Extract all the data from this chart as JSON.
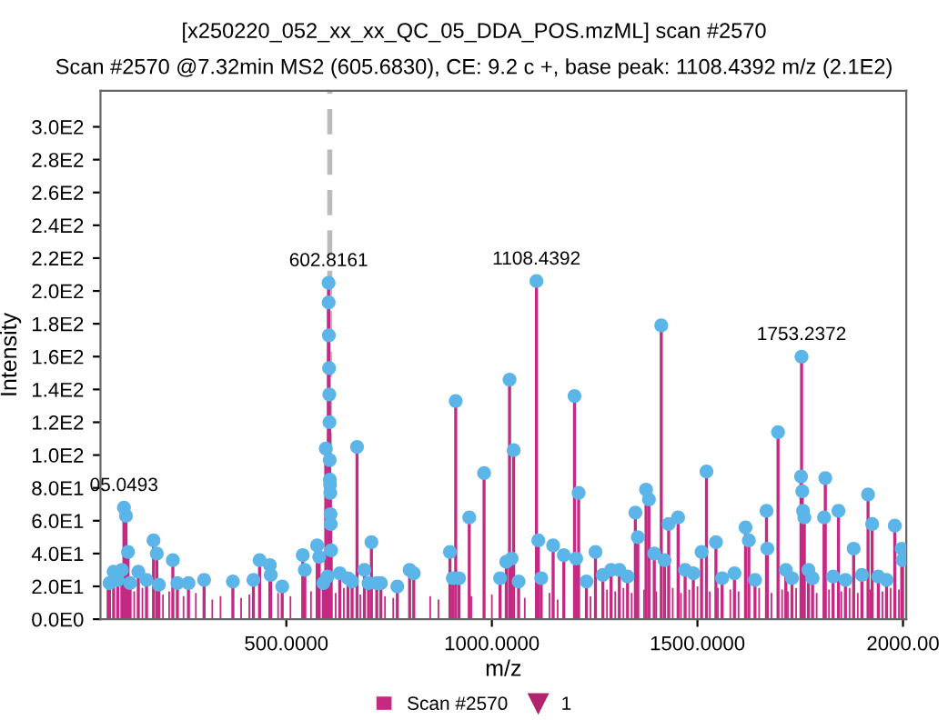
{
  "chart_data": {
    "type": "bar",
    "title": "[x250220_052_xx_xx_QC_05_DDA_POS.mzML] scan #2570",
    "subtitle": "Scan #2570 @7.32min MS2 (605.6830), CE: 9.2 c +, base peak: 1108.4392 m/z (2.1E2)",
    "xlabel": "m/z",
    "ylabel": "Intensity",
    "xlim": [
      48,
      2008
    ],
    "ylim": [
      0,
      322
    ],
    "xticks": [
      {
        "value": 500,
        "label": "500.0000"
      },
      {
        "value": 1000,
        "label": "1000.0000"
      },
      {
        "value": 1500,
        "label": "1500.0000"
      },
      {
        "value": 2000,
        "label": "2000.00"
      }
    ],
    "yticks": [
      {
        "value": 0,
        "label": "0.0E0"
      },
      {
        "value": 20,
        "label": "2.0E1"
      },
      {
        "value": 40,
        "label": "4.0E1"
      },
      {
        "value": 60,
        "label": "6.0E1"
      },
      {
        "value": 80,
        "label": "8.0E1"
      },
      {
        "value": 100,
        "label": "1.0E2"
      },
      {
        "value": 120,
        "label": "1.2E2"
      },
      {
        "value": 140,
        "label": "1.4E2"
      },
      {
        "value": 160,
        "label": "1.6E2"
      },
      {
        "value": 180,
        "label": "1.8E2"
      },
      {
        "value": 200,
        "label": "2.0E2"
      },
      {
        "value": 220,
        "label": "2.2E2"
      },
      {
        "value": 240,
        "label": "2.4E2"
      },
      {
        "value": 260,
        "label": "2.6E2"
      },
      {
        "value": 280,
        "label": "2.8E2"
      },
      {
        "value": 300,
        "label": "3.0E2"
      }
    ],
    "grid": false,
    "legend": "bottom",
    "ref_lines": [
      {
        "axis": "x",
        "value": 605.683,
        "color": "#bbbbbb",
        "line_style": "dashed"
      }
    ],
    "annotations": [
      {
        "text": "05.0493",
        "x": 105.0493,
        "y": 68
      },
      {
        "text": "602.8161",
        "x": 602.8161,
        "y": 205
      },
      {
        "text": "1108.4392",
        "x": 1108.4392,
        "y": 206
      },
      {
        "text": "1753.2372",
        "x": 1753.2372,
        "y": 160
      }
    ],
    "series": [
      {
        "name": "Scan #2570",
        "color": "#c42a82",
        "x": [
          65,
          130,
          150,
          200,
          215,
          250,
          280,
          320,
          340,
          390,
          410,
          480,
          510,
          560,
          620,
          640,
          680,
          740,
          760,
          850,
          870,
          950,
          1000,
          1080,
          1140,
          1160,
          1240,
          1280,
          1300,
          1320,
          1340,
          1370,
          1400,
          1440,
          1460,
          1480,
          1500,
          1530,
          1550,
          1580,
          1600,
          1650,
          1680,
          1706,
          1720,
          1740,
          1790,
          1820,
          1850,
          1870,
          1890,
          1920,
          1950,
          1970,
          1990
        ],
        "values": [
          18,
          17,
          19,
          15,
          17,
          14,
          16,
          12,
          14,
          13,
          15,
          16,
          14,
          17,
          16,
          19,
          15,
          14,
          13,
          14,
          12,
          14,
          15,
          13,
          16,
          12,
          14,
          18,
          17,
          19,
          16,
          18,
          17,
          19,
          16,
          18,
          20,
          17,
          19,
          18,
          17,
          19,
          16,
          18,
          17,
          19,
          16,
          18,
          17,
          19,
          16,
          18,
          17,
          19,
          18
        ]
      },
      {
        "type": "lollipop",
        "color": "#5bb5e8",
        "marker": "circle",
        "x": [
          70,
          80,
          90,
          100,
          105.0493,
          110,
          115,
          120,
          140,
          160,
          177,
          185,
          190,
          224,
          235,
          262,
          300,
          370,
          420,
          435,
          460,
          462,
          490,
          540,
          545,
          575,
          580,
          590,
          596,
          600,
          602.8161,
          603,
          603.5,
          604,
          604.5,
          605,
          605.5,
          606,
          606.5,
          607,
          607.5,
          608,
          609,
          630,
          650,
          660,
          672,
          690,
          700,
          707,
          720,
          730,
          770,
          800,
          810,
          898,
          905,
          912,
          920,
          945,
          981,
          1020,
          1035,
          1043,
          1048,
          1053,
          1065,
          1108.4392,
          1113,
          1120,
          1149,
          1175,
          1201,
          1205,
          1211,
          1230,
          1252,
          1270,
          1290,
          1310,
          1330,
          1349,
          1355,
          1375,
          1382,
          1395,
          1412,
          1420,
          1430,
          1453,
          1470,
          1490,
          1510,
          1522,
          1545,
          1560,
          1590,
          1617,
          1625,
          1640,
          1668,
          1670,
          1696,
          1715,
          1730,
          1752,
          1753.2372,
          1755,
          1757,
          1760,
          1770,
          1780,
          1808,
          1811,
          1830,
          1843,
          1860,
          1880,
          1900,
          1915,
          1925,
          1940,
          1960,
          1980,
          1997,
          1999
        ],
        "values": [
          22,
          29,
          24,
          30,
          68,
          63,
          41,
          22,
          29,
          24,
          48,
          40,
          21,
          36,
          22,
          22,
          24,
          23,
          24,
          36,
          33,
          27,
          20,
          39,
          30,
          45,
          38,
          22,
          104,
          26,
          205,
          193,
          173,
          153,
          137,
          120,
          97,
          85,
          82,
          77,
          64,
          58,
          42,
          28,
          25,
          23,
          105,
          30,
          22,
          47,
          22,
          22,
          20,
          30,
          28,
          41,
          25,
          133,
          25,
          62,
          89,
          25,
          35,
          146,
          37,
          103,
          23,
          206,
          48,
          25,
          45,
          39,
          136,
          37,
          77,
          23,
          41,
          27,
          30,
          30,
          26,
          65,
          50,
          79,
          73,
          40,
          179,
          36,
          58,
          62,
          30,
          28,
          41,
          90,
          47,
          25,
          28,
          56,
          48,
          24,
          66,
          43,
          114,
          30,
          25,
          87,
          160,
          78,
          66,
          62,
          30,
          25,
          62,
          86,
          26,
          66,
          24,
          43,
          27,
          76,
          58,
          26,
          24,
          57,
          43,
          36
        ]
      },
      {
        "name": "1",
        "type": "scatter",
        "color": "#b0246e",
        "marker": "triangle"
      }
    ]
  }
}
